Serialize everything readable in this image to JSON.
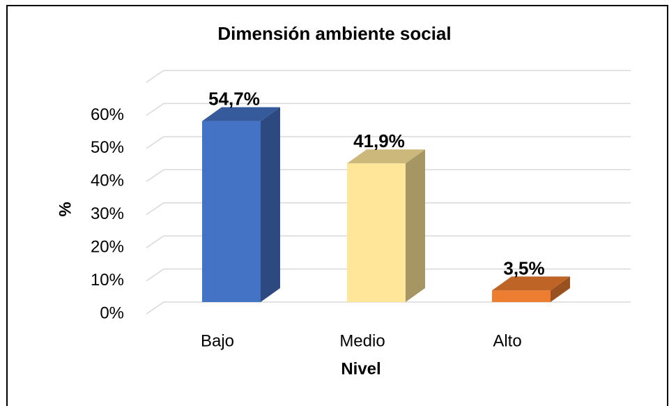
{
  "chart_data": {
    "type": "bar3d",
    "title": "Dimensión ambiente social",
    "categories": [
      "Bajo",
      "Medio",
      "Alto"
    ],
    "values": [
      54.7,
      41.9,
      3.5
    ],
    "value_labels": [
      "54,7%",
      "41,9%",
      "3,5%"
    ],
    "colors": [
      "#4472c4",
      "#ffe699",
      "#ed7d31"
    ],
    "y_label": "%",
    "x_label": "Nivel",
    "ylim": [
      0,
      70
    ],
    "yticks": [
      {
        "value": 0,
        "label": "0%"
      },
      {
        "value": 10,
        "label": "10%"
      },
      {
        "value": 20,
        "label": "20%"
      },
      {
        "value": 30,
        "label": "30%"
      },
      {
        "value": 40,
        "label": "40%"
      },
      {
        "value": 50,
        "label": "50%"
      },
      {
        "value": 60,
        "label": "60%"
      }
    ],
    "grid": true
  }
}
